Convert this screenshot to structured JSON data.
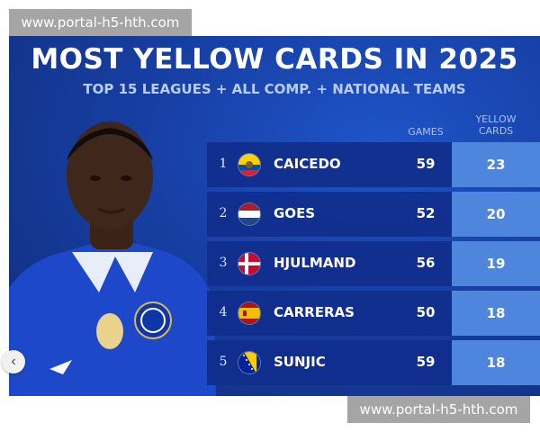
{
  "watermark": {
    "top_text": "www.portal-h5-hth.com",
    "bottom_text": "www.portal-h5-hth.com"
  },
  "graphic": {
    "title": "MOST YELLOW CARDS IN 2025",
    "subtitle": "TOP 15 LEAGUES + ALL COMP. + NATIONAL TEAMS",
    "col_games": "GAMES",
    "col_yellow_line1": "YELLOW",
    "col_yellow_line2": "CARDS",
    "rows": [
      {
        "rank": "1",
        "name": "CAICEDO",
        "games": "59",
        "yellow": "23",
        "flag": "ecuador"
      },
      {
        "rank": "2",
        "name": "GOES",
        "games": "52",
        "yellow": "20",
        "flag": "netherlands"
      },
      {
        "rank": "3",
        "name": "HJULMAND",
        "games": "56",
        "yellow": "19",
        "flag": "denmark"
      },
      {
        "rank": "4",
        "name": "CARRERAS",
        "games": "50",
        "yellow": "18",
        "flag": "spain"
      },
      {
        "rank": "5",
        "name": "SUNJIC",
        "games": "59",
        "yellow": "18",
        "flag": "bosnia"
      }
    ]
  },
  "nav": {
    "prev_icon": "chevron-left-icon",
    "prev_glyph": "‹"
  },
  "colors": {
    "background": "#173fa3",
    "row": "#102e8c",
    "highlight": "#4e86dd"
  }
}
